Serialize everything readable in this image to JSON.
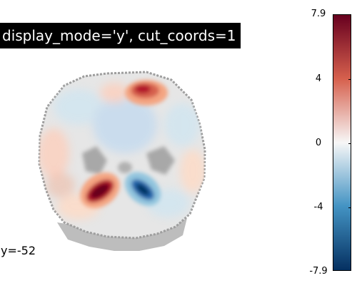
{
  "figure": {
    "title": "display_mode='y', cut_coords=1",
    "cut_label": "y=-52"
  },
  "colorbar": {
    "max_label": "7.9",
    "ticks": [
      "4",
      "0",
      "-4"
    ],
    "min_label": "-7.9",
    "colormap": "RdBu_r",
    "colors": {
      "top": "#67001f",
      "upper": "#d6604d",
      "mid": "#f7f7f7",
      "lower": "#4393c3",
      "bottom": "#053061"
    }
  }
}
